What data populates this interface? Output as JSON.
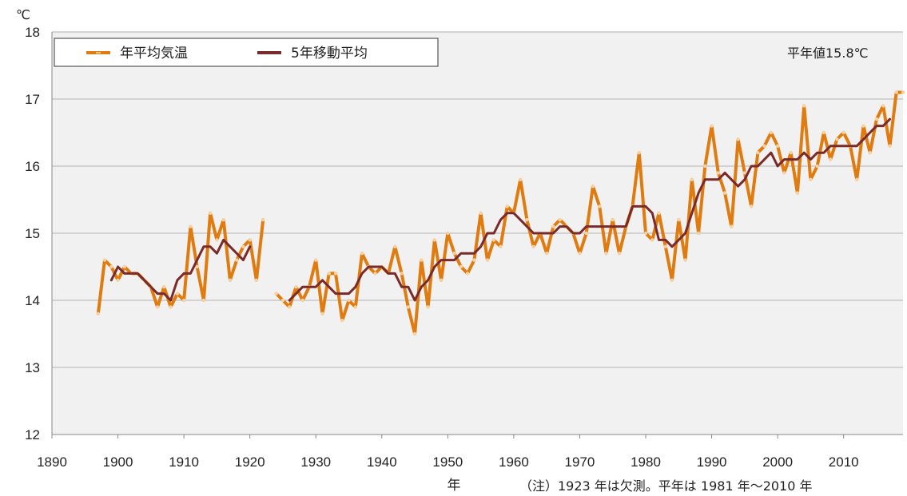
{
  "chart_data": {
    "type": "line",
    "unit_label": "℃",
    "xlabel": "年",
    "xlim": [
      1890,
      2019
    ],
    "ylim": [
      12,
      18
    ],
    "xticks": [
      1890,
      1900,
      1910,
      1920,
      1930,
      1940,
      1950,
      1960,
      1970,
      1980,
      1990,
      2000,
      2010
    ],
    "yticks": [
      12,
      13,
      14,
      15,
      16,
      17,
      18
    ],
    "grid": true,
    "legend_position": "top-left",
    "normal_label": "平年値15.8℃",
    "note": "（注）1923 年は欠測。平年は 1981 年～2010 年",
    "colors": {
      "annual": "#E07B10",
      "moving": "#7B2A2A",
      "plot_bg": "#F1F1F1",
      "grid": "#C8C8C8"
    },
    "series": [
      {
        "name": "年平均気温",
        "segments": [
          {
            "x": [
              1897,
              1898,
              1899,
              1900,
              1901,
              1902,
              1903,
              1904,
              1905,
              1906,
              1907,
              1908,
              1909,
              1910,
              1911,
              1912,
              1913,
              1914,
              1915,
              1916,
              1917,
              1918,
              1919,
              1920,
              1921,
              1922
            ],
            "y": [
              13.8,
              14.6,
              14.5,
              14.3,
              14.5,
              14.4,
              14.4,
              14.3,
              14.2,
              13.9,
              14.2,
              13.9,
              14.1,
              14.0,
              15.1,
              14.5,
              14.0,
              15.3,
              14.9,
              15.2,
              14.3,
              14.6,
              14.8,
              14.9,
              14.3,
              15.2
            ]
          },
          {
            "x": [
              1924,
              1925,
              1926,
              1927,
              1928,
              1929,
              1930,
              1931,
              1932,
              1933,
              1934,
              1935,
              1936,
              1937,
              1938,
              1939,
              1940,
              1941,
              1942,
              1943,
              1944,
              1945,
              1946,
              1947,
              1948,
              1949,
              1950,
              1951,
              1952,
              1953,
              1954,
              1955,
              1956,
              1957,
              1958,
              1959,
              1960,
              1961,
              1962,
              1963,
              1964,
              1965,
              1966,
              1967,
              1968,
              1969,
              1970,
              1971,
              1972,
              1973,
              1974,
              1975,
              1976,
              1977,
              1978,
              1979,
              1980,
              1981,
              1982,
              1983,
              1984,
              1985,
              1986,
              1987,
              1988,
              1989,
              1990,
              1991,
              1992,
              1993,
              1994,
              1995,
              1996,
              1997,
              1998,
              1999,
              2000,
              2001,
              2002,
              2003,
              2004,
              2005,
              2006,
              2007,
              2008,
              2009,
              2010,
              2011,
              2012,
              2013,
              2014,
              2015,
              2016,
              2017,
              2018,
              2019
            ],
            "y": [
              14.1,
              14.0,
              13.9,
              14.2,
              14.0,
              14.2,
              14.6,
              13.8,
              14.4,
              14.4,
              13.7,
              14.0,
              13.9,
              14.7,
              14.5,
              14.4,
              14.5,
              14.4,
              14.8,
              14.4,
              13.9,
              13.5,
              14.6,
              13.9,
              14.9,
              14.3,
              15.0,
              14.7,
              14.5,
              14.4,
              14.6,
              15.3,
              14.6,
              14.9,
              14.8,
              15.4,
              15.3,
              15.8,
              15.2,
              14.8,
              15.0,
              14.7,
              15.1,
              15.2,
              15.1,
              15.0,
              14.7,
              15.0,
              15.7,
              15.4,
              14.7,
              15.2,
              14.7,
              15.1,
              15.4,
              16.2,
              15.0,
              14.9,
              15.3,
              14.8,
              14.3,
              15.2,
              14.6,
              15.8,
              15.0,
              16.0,
              16.6,
              15.9,
              15.6,
              15.1,
              16.4,
              15.9,
              15.4,
              16.2,
              16.3,
              16.5,
              16.3,
              15.9,
              16.2,
              15.6,
              16.9,
              15.8,
              16.0,
              16.5,
              16.1,
              16.4,
              16.5,
              16.3,
              15.8,
              16.6,
              16.2,
              16.7,
              16.9,
              16.3,
              17.1,
              17.1
            ]
          }
        ]
      },
      {
        "name": "5年移動平均",
        "segments": [
          {
            "x": [
              1899,
              1900,
              1901,
              1902,
              1903,
              1904,
              1905,
              1906,
              1907,
              1908,
              1909,
              1910,
              1911,
              1912,
              1913,
              1914,
              1915,
              1916,
              1917,
              1918,
              1919,
              1920
            ],
            "y": [
              14.3,
              14.5,
              14.4,
              14.4,
              14.4,
              14.3,
              14.2,
              14.1,
              14.1,
              14.0,
              14.3,
              14.4,
              14.4,
              14.6,
              14.8,
              14.8,
              14.7,
              14.9,
              14.8,
              14.7,
              14.6,
              14.8
            ]
          },
          {
            "x": [
              1926,
              1927,
              1928,
              1929,
              1930,
              1931,
              1932,
              1933,
              1934,
              1935,
              1936,
              1937,
              1938,
              1939,
              1940,
              1941,
              1942,
              1943,
              1944,
              1945,
              1946,
              1947,
              1948,
              1949,
              1950,
              1951,
              1952,
              1953,
              1954,
              1955,
              1956,
              1957,
              1958,
              1959,
              1960,
              1961,
              1962,
              1963,
              1964,
              1965,
              1966,
              1967,
              1968,
              1969,
              1970,
              1971,
              1972,
              1973,
              1974,
              1975,
              1976,
              1977,
              1978,
              1979,
              1980,
              1981,
              1982,
              1983,
              1984,
              1985,
              1986,
              1987,
              1988,
              1989,
              1990,
              1991,
              1992,
              1993,
              1994,
              1995,
              1996,
              1997,
              1998,
              1999,
              2000,
              2001,
              2002,
              2003,
              2004,
              2005,
              2006,
              2007,
              2008,
              2009,
              2010,
              2011,
              2012,
              2013,
              2014,
              2015,
              2016,
              2017
            ],
            "y": [
              14.0,
              14.1,
              14.2,
              14.2,
              14.2,
              14.3,
              14.2,
              14.1,
              14.1,
              14.1,
              14.2,
              14.4,
              14.5,
              14.5,
              14.5,
              14.4,
              14.4,
              14.2,
              14.2,
              14.0,
              14.2,
              14.3,
              14.5,
              14.6,
              14.6,
              14.6,
              14.7,
              14.7,
              14.7,
              14.8,
              15.0,
              15.0,
              15.2,
              15.3,
              15.3,
              15.2,
              15.1,
              15.0,
              15.0,
              15.0,
              15.0,
              15.1,
              15.1,
              15.0,
              15.0,
              15.1,
              15.1,
              15.1,
              15.1,
              15.1,
              15.1,
              15.1,
              15.4,
              15.4,
              15.4,
              15.3,
              14.9,
              14.9,
              14.8,
              14.9,
              15.0,
              15.3,
              15.6,
              15.8,
              15.8,
              15.8,
              15.9,
              15.8,
              15.7,
              15.8,
              16.0,
              16.0,
              16.1,
              16.2,
              16.0,
              16.1,
              16.1,
              16.1,
              16.2,
              16.1,
              16.2,
              16.2,
              16.3,
              16.3,
              16.3,
              16.3,
              16.3,
              16.4,
              16.5,
              16.6,
              16.6,
              16.7
            ]
          }
        ]
      }
    ]
  }
}
